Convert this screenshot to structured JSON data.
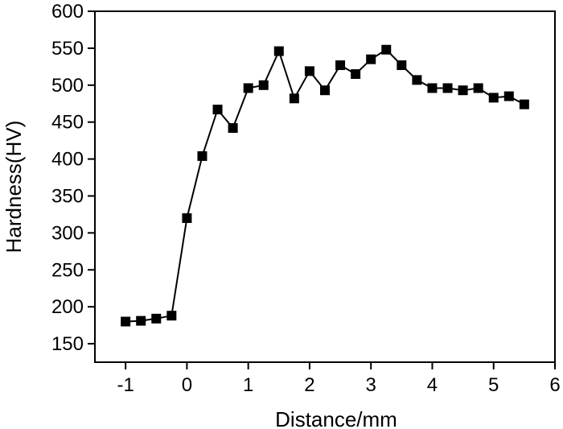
{
  "chart_data": {
    "type": "line",
    "title": "",
    "xlabel": "Distance/mm",
    "ylabel": "Hardness(HV)",
    "xlim": [
      -1.5,
      6
    ],
    "ylim": [
      125,
      600
    ],
    "xticks": [
      -1,
      0,
      1,
      2,
      3,
      4,
      5,
      6
    ],
    "yticks": [
      150,
      200,
      250,
      300,
      350,
      400,
      450,
      500,
      550,
      600
    ],
    "grid": false,
    "legend": "none",
    "marker": "square",
    "line_color": "#000000",
    "series": [
      {
        "x": [
          -1,
          -0.75,
          -0.5,
          -0.25,
          0,
          0.25,
          0.5,
          0.75,
          1,
          1.25,
          1.5,
          1.75,
          2,
          2.25,
          2.5,
          2.75,
          3,
          3.25,
          3.5,
          3.75,
          4,
          4.25,
          4.5,
          4.75,
          5,
          5.25,
          5.5
        ],
        "y": [
          180,
          181,
          184,
          188,
          320,
          404,
          467,
          442,
          496,
          500,
          546,
          482,
          519,
          493,
          527,
          515,
          535,
          548,
          527,
          507,
          496,
          496,
          493,
          496,
          483,
          485,
          474
        ]
      }
    ]
  }
}
